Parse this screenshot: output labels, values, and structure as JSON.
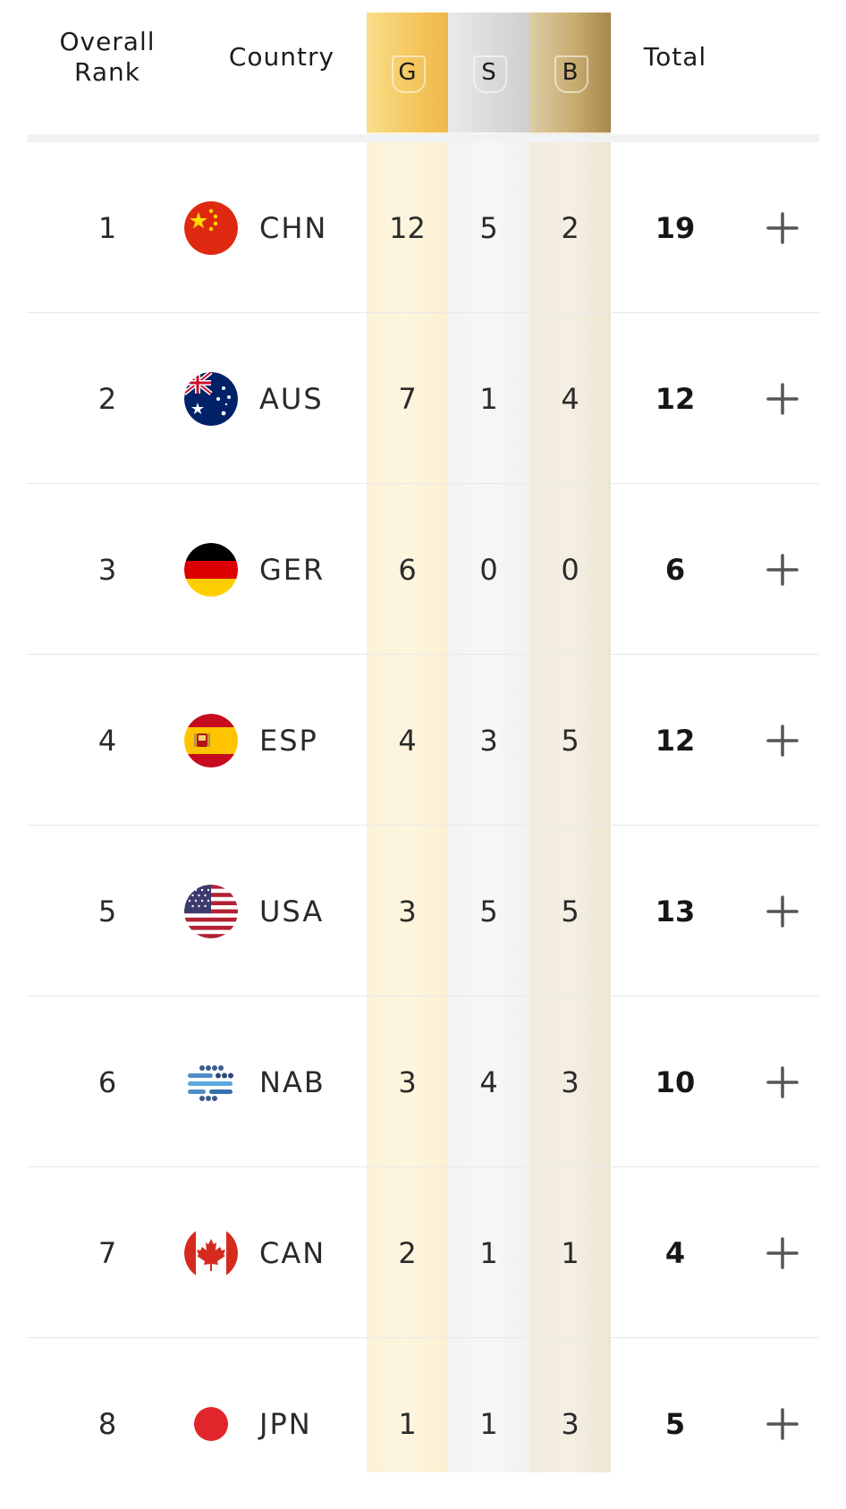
{
  "header": {
    "rank_label_line1": "Overall",
    "rank_label_line2": "Rank",
    "country_label": "Country",
    "gold_label": "G",
    "silver_label": "S",
    "bronze_label": "B",
    "total_label": "Total"
  },
  "rows": [
    {
      "rank": "1",
      "code": "CHN",
      "flag": "china-flag-icon",
      "gold": "12",
      "silver": "5",
      "bronze": "2",
      "total": "19"
    },
    {
      "rank": "2",
      "code": "AUS",
      "flag": "australia-flag-icon",
      "gold": "7",
      "silver": "1",
      "bronze": "4",
      "total": "12"
    },
    {
      "rank": "3",
      "code": "GER",
      "flag": "germany-flag-icon",
      "gold": "6",
      "silver": "0",
      "bronze": "0",
      "total": "6"
    },
    {
      "rank": "4",
      "code": "ESP",
      "flag": "spain-flag-icon",
      "gold": "4",
      "silver": "3",
      "bronze": "5",
      "total": "12"
    },
    {
      "rank": "5",
      "code": "USA",
      "flag": "usa-flag-icon",
      "gold": "3",
      "silver": "5",
      "bronze": "5",
      "total": "13"
    },
    {
      "rank": "6",
      "code": "NAB",
      "flag": "nab-flag-icon",
      "gold": "3",
      "silver": "4",
      "bronze": "3",
      "total": "10"
    },
    {
      "rank": "7",
      "code": "CAN",
      "flag": "canada-flag-icon",
      "gold": "2",
      "silver": "1",
      "bronze": "1",
      "total": "4"
    },
    {
      "rank": "8",
      "code": "JPN",
      "flag": "japan-flag-icon",
      "gold": "1",
      "silver": "1",
      "bronze": "3",
      "total": "5"
    }
  ],
  "expand_icon": "plus-icon",
  "colors": {
    "gold_header": "#f4c65c",
    "silver_header": "#d9d9d9",
    "bronze_header": "#c8ab6f"
  }
}
